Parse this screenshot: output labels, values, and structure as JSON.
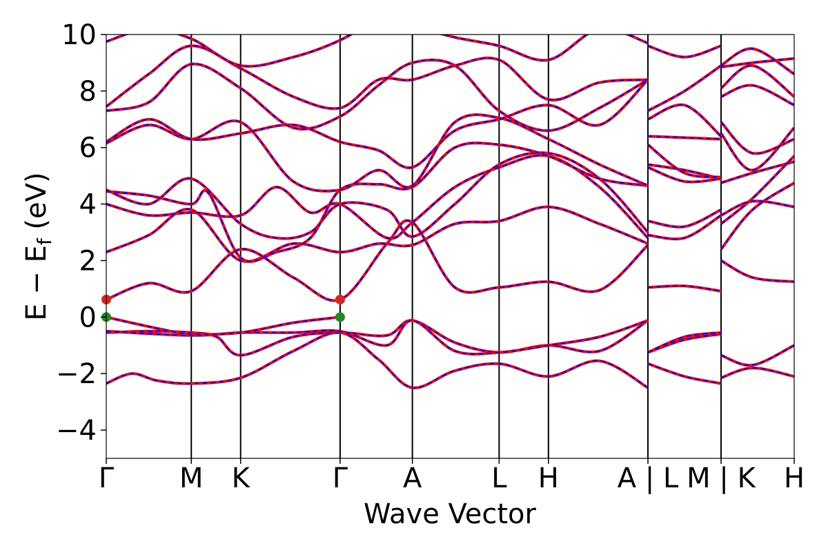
{
  "chart_data": {
    "type": "line",
    "xlabel": "Wave Vector",
    "ylabel_main": "E − E",
    "ylabel_sub": "f",
    "ylabel_unit": " (eV)",
    "ylim": [
      -5,
      10
    ],
    "yticks": [
      -4,
      -2,
      0,
      2,
      4,
      6,
      8,
      10
    ],
    "ytick_labels": [
      "−4",
      "−2",
      "0",
      "2",
      "4",
      "6",
      "8",
      "10"
    ],
    "kpath": {
      "positions": [
        0,
        1.0,
        1.58,
        2.75,
        3.6,
        4.62,
        5.2,
        6.37,
        7.23,
        8.09
      ],
      "labels": [
        "Γ",
        "M",
        "K",
        "Γ",
        "A",
        "L",
        "H",
        "A | L",
        "M | K",
        "H"
      ],
      "segment_breaks": [
        6.37,
        7.23
      ]
    },
    "series": [
      {
        "style": "red-solid",
        "color": "#ff0000"
      },
      {
        "style": "blue-dashed",
        "color": "#0000ff"
      }
    ],
    "markers": [
      {
        "x": 0.0,
        "y": 0.62,
        "color": "#dd2222",
        "label": "CBM"
      },
      {
        "x": 2.75,
        "y": 0.62,
        "color": "#dd2222",
        "label": "CBM"
      },
      {
        "x": 0.0,
        "y": 0.0,
        "color": "#228822",
        "label": "VBM"
      },
      {
        "x": 2.75,
        "y": 0.0,
        "color": "#228822",
        "label": "VBM"
      }
    ],
    "bands": [
      [
        [
          0,
          -2.35
        ],
        [
          0.3,
          -2.0
        ],
        [
          0.6,
          -2.25
        ],
        [
          1.0,
          -2.35
        ],
        [
          1.58,
          -2.15
        ],
        [
          2.2,
          -1.2
        ],
        [
          2.75,
          -0.55
        ],
        [
          3.2,
          -1.5
        ],
        [
          3.6,
          -2.5
        ],
        [
          4.1,
          -1.9
        ],
        [
          4.62,
          -1.65
        ],
        [
          5.2,
          -2.1
        ],
        [
          5.8,
          -1.55
        ],
        [
          6.37,
          -2.5
        ]
      ],
      [
        [
          6.37,
          -1.65
        ],
        [
          6.8,
          -2.1
        ],
        [
          7.23,
          -2.35
        ]
      ],
      [
        [
          7.23,
          -2.15
        ],
        [
          7.6,
          -1.8
        ],
        [
          8.09,
          -2.1
        ]
      ],
      [
        [
          0,
          -0.55
        ],
        [
          0.5,
          -0.5
        ],
        [
          1.0,
          -0.55
        ],
        [
          1.3,
          -0.7
        ],
        [
          1.58,
          -1.35
        ],
        [
          2.2,
          -0.7
        ],
        [
          2.75,
          -0.55
        ],
        [
          3.3,
          -0.65
        ],
        [
          3.6,
          -0.12
        ],
        [
          4.1,
          -0.9
        ],
        [
          4.62,
          -1.25
        ],
        [
          5.2,
          -1.0
        ],
        [
          5.8,
          -1.2
        ],
        [
          6.37,
          -0.12
        ]
      ],
      [
        [
          6.37,
          -1.25
        ],
        [
          6.8,
          -0.8
        ],
        [
          7.23,
          -0.6
        ]
      ],
      [
        [
          7.23,
          -1.35
        ],
        [
          7.6,
          -1.7
        ],
        [
          8.09,
          -1.0
        ]
      ],
      [
        [
          0,
          -0.5
        ],
        [
          1.0,
          -0.65
        ],
        [
          1.58,
          -0.55
        ],
        [
          2.2,
          -0.55
        ],
        [
          2.75,
          -0.5
        ],
        [
          3.3,
          -1.0
        ],
        [
          3.6,
          -0.12
        ],
        [
          4.1,
          -1.2
        ],
        [
          4.62,
          -1.25
        ],
        [
          5.2,
          -1.0
        ],
        [
          5.8,
          -0.7
        ],
        [
          6.37,
          -0.12
        ]
      ],
      [
        [
          6.37,
          -1.25
        ],
        [
          6.8,
          -0.7
        ],
        [
          7.23,
          -0.55
        ]
      ],
      [
        [
          0,
          0.0
        ],
        [
          0.6,
          -0.4
        ],
        [
          1.0,
          -0.6
        ],
        [
          1.58,
          -0.55
        ],
        [
          2.2,
          -0.2
        ],
        [
          2.75,
          0.0
        ]
      ],
      [
        [
          0,
          0.62
        ],
        [
          0.5,
          1.2
        ],
        [
          1.0,
          0.92
        ],
        [
          1.58,
          2.4
        ],
        [
          2.2,
          1.4
        ],
        [
          2.75,
          0.62
        ],
        [
          3.3,
          2.6
        ],
        [
          3.6,
          3.35
        ],
        [
          4.1,
          1.05
        ],
        [
          4.62,
          1.05
        ],
        [
          5.2,
          1.25
        ],
        [
          5.8,
          0.95
        ],
        [
          6.37,
          2.55
        ]
      ],
      [
        [
          6.37,
          1.05
        ],
        [
          6.8,
          1.1
        ],
        [
          7.23,
          0.92
        ]
      ],
      [
        [
          7.23,
          2.0
        ],
        [
          7.6,
          1.4
        ],
        [
          8.09,
          1.25
        ]
      ],
      [
        [
          0,
          2.3
        ],
        [
          0.5,
          2.9
        ],
        [
          1.0,
          3.8
        ],
        [
          1.58,
          2.0
        ],
        [
          2.2,
          2.6
        ],
        [
          2.75,
          2.3
        ],
        [
          3.2,
          2.6
        ],
        [
          3.6,
          2.55
        ],
        [
          4.1,
          3.3
        ],
        [
          4.62,
          3.4
        ],
        [
          5.2,
          3.9
        ],
        [
          5.8,
          3.3
        ],
        [
          6.37,
          2.6
        ]
      ],
      [
        [
          6.37,
          2.9
        ],
        [
          6.8,
          2.8
        ],
        [
          7.23,
          3.6
        ]
      ],
      [
        [
          7.23,
          2.4
        ],
        [
          7.6,
          3.8
        ],
        [
          8.09,
          4.75
        ]
      ],
      [
        [
          0,
          4.0
        ],
        [
          0.5,
          3.6
        ],
        [
          1.0,
          3.7
        ],
        [
          1.58,
          3.6
        ],
        [
          2.0,
          4.6
        ],
        [
          2.4,
          3.7
        ],
        [
          2.75,
          4.0
        ],
        [
          3.3,
          2.8
        ],
        [
          3.6,
          3.35
        ],
        [
          4.1,
          4.6
        ],
        [
          4.62,
          5.3
        ],
        [
          5.2,
          5.7
        ],
        [
          5.8,
          4.6
        ],
        [
          6.37,
          2.8
        ]
      ],
      [
        [
          6.37,
          3.4
        ],
        [
          6.8,
          3.2
        ],
        [
          7.23,
          3.8
        ]
      ],
      [
        [
          7.23,
          3.3
        ],
        [
          7.6,
          4.2
        ],
        [
          8.09,
          5.7
        ]
      ],
      [
        [
          0,
          4.5
        ],
        [
          0.5,
          4.0
        ],
        [
          1.0,
          4.9
        ],
        [
          1.58,
          3.3
        ],
        [
          2.0,
          2.8
        ],
        [
          2.4,
          3.0
        ],
        [
          2.75,
          4.0
        ],
        [
          3.3,
          3.8
        ],
        [
          3.6,
          2.85
        ],
        [
          4.1,
          4.0
        ],
        [
          4.62,
          5.4
        ],
        [
          5.2,
          5.8
        ],
        [
          5.8,
          4.9
        ],
        [
          6.37,
          3.0
        ]
      ],
      [
        [
          6.37,
          5.4
        ],
        [
          6.8,
          5.2
        ],
        [
          7.23,
          4.9
        ]
      ],
      [
        [
          7.23,
          3.6
        ],
        [
          7.6,
          4.1
        ],
        [
          8.09,
          3.9
        ]
      ],
      [
        [
          0,
          4.45
        ],
        [
          0.5,
          4.3
        ],
        [
          1.0,
          4.0
        ],
        [
          1.2,
          4.4
        ],
        [
          1.58,
          2.1
        ],
        [
          2.0,
          2.3
        ],
        [
          2.4,
          2.8
        ],
        [
          2.75,
          4.5
        ],
        [
          3.2,
          4.7
        ],
        [
          3.6,
          4.6
        ],
        [
          4.1,
          6.0
        ],
        [
          4.62,
          6.1
        ],
        [
          5.2,
          5.7
        ],
        [
          5.8,
          4.9
        ],
        [
          6.37,
          4.65
        ]
      ],
      [
        [
          6.37,
          5.3
        ],
        [
          6.8,
          4.8
        ],
        [
          7.23,
          4.9
        ]
      ],
      [
        [
          7.23,
          4.75
        ],
        [
          7.6,
          5.1
        ],
        [
          8.09,
          5.5
        ]
      ],
      [
        [
          0,
          6.15
        ],
        [
          0.5,
          6.8
        ],
        [
          1.0,
          6.3
        ],
        [
          1.58,
          6.9
        ],
        [
          2.2,
          4.8
        ],
        [
          2.75,
          4.5
        ],
        [
          3.2,
          5.2
        ],
        [
          3.6,
          4.65
        ],
        [
          4.1,
          6.9
        ],
        [
          4.62,
          7.05
        ],
        [
          5.2,
          6.3
        ],
        [
          5.8,
          5.4
        ],
        [
          6.37,
          4.65
        ]
      ],
      [
        [
          6.37,
          6.1
        ],
        [
          6.8,
          5.1
        ],
        [
          7.23,
          4.95
        ]
      ],
      [
        [
          7.23,
          6.9
        ],
        [
          7.6,
          5.8
        ],
        [
          8.09,
          6.3
        ]
      ],
      [
        [
          0,
          6.2
        ],
        [
          0.5,
          7.0
        ],
        [
          1.0,
          6.3
        ],
        [
          1.58,
          6.5
        ],
        [
          2.2,
          6.8
        ],
        [
          2.75,
          6.2
        ],
        [
          3.2,
          5.9
        ],
        [
          3.6,
          5.3
        ],
        [
          4.1,
          6.6
        ],
        [
          4.62,
          7.0
        ],
        [
          5.2,
          7.5
        ],
        [
          5.8,
          6.8
        ],
        [
          6.37,
          8.4
        ]
      ],
      [
        [
          6.37,
          6.4
        ],
        [
          6.8,
          6.35
        ],
        [
          7.23,
          6.3
        ]
      ],
      [
        [
          7.23,
          6.5
        ],
        [
          7.6,
          5.2
        ],
        [
          8.09,
          6.7
        ]
      ],
      [
        [
          0,
          7.3
        ],
        [
          0.5,
          7.6
        ],
        [
          1.0,
          8.95
        ],
        [
          1.58,
          8.1
        ],
        [
          2.2,
          6.7
        ],
        [
          2.75,
          7.1
        ],
        [
          3.2,
          8.2
        ],
        [
          3.6,
          9.0
        ],
        [
          4.1,
          8.9
        ],
        [
          4.62,
          7.3
        ],
        [
          5.2,
          6.6
        ],
        [
          5.8,
          7.4
        ],
        [
          6.37,
          8.4
        ]
      ],
      [
        [
          6.37,
          7.0
        ],
        [
          6.8,
          7.5
        ],
        [
          7.23,
          6.4
        ]
      ],
      [
        [
          7.23,
          7.8
        ],
        [
          7.6,
          8.2
        ],
        [
          8.09,
          7.5
        ]
      ],
      [
        [
          0,
          7.45
        ],
        [
          0.5,
          8.6
        ],
        [
          1.0,
          9.6
        ],
        [
          1.58,
          8.8
        ],
        [
          2.2,
          7.8
        ],
        [
          2.75,
          7.4
        ],
        [
          3.2,
          8.4
        ],
        [
          3.6,
          8.4
        ],
        [
          4.1,
          8.9
        ],
        [
          4.62,
          9.1
        ],
        [
          5.2,
          7.7
        ],
        [
          5.8,
          8.3
        ],
        [
          6.37,
          8.4
        ]
      ],
      [
        [
          6.37,
          7.3
        ],
        [
          6.8,
          8.0
        ],
        [
          7.23,
          8.9
        ]
      ],
      [
        [
          7.23,
          8.1
        ],
        [
          7.6,
          8.9
        ],
        [
          8.09,
          7.8
        ]
      ],
      [
        [
          0,
          9.75
        ],
        [
          0.5,
          10.2
        ],
        [
          1.0,
          9.85
        ],
        [
          1.58,
          8.9
        ],
        [
          2.2,
          9.2
        ],
        [
          2.75,
          9.8
        ],
        [
          3.2,
          10.6
        ]
      ],
      [
        [
          3.6,
          10.3
        ],
        [
          4.1,
          9.9
        ],
        [
          4.62,
          9.6
        ],
        [
          5.2,
          9.1
        ],
        [
          5.8,
          10.2
        ],
        [
          6.37,
          9.7
        ]
      ],
      [
        [
          6.37,
          9.6
        ],
        [
          6.8,
          9.2
        ],
        [
          7.23,
          9.6
        ]
      ],
      [
        [
          7.23,
          8.85
        ],
        [
          7.6,
          9.0
        ],
        [
          8.09,
          9.15
        ]
      ],
      [
        [
          7.23,
          8.9
        ],
        [
          7.6,
          9.5
        ],
        [
          8.09,
          8.6
        ]
      ]
    ]
  }
}
